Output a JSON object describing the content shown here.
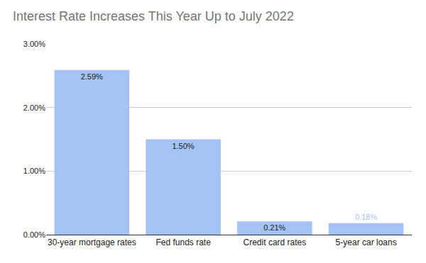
{
  "chart_data": {
    "type": "bar",
    "title": "Interest Rate Increases This Year Up to July 2022",
    "categories": [
      "30-year mortgage rates",
      "Fed funds rate",
      "Credit card rates",
      "5-year car loans"
    ],
    "values": [
      2.59,
      1.5,
      0.21,
      0.18
    ],
    "value_labels": [
      "2.59%",
      "1.50%",
      "0.21%",
      "0.18%"
    ],
    "color": "#a4c2f4",
    "ylim": [
      0,
      3
    ],
    "yticks": [
      {
        "value": 0,
        "label": "0.00%"
      },
      {
        "value": 1,
        "label": "1.00%"
      },
      {
        "value": 2,
        "label": "2.00%"
      },
      {
        "value": 3,
        "label": "3.00%"
      }
    ],
    "grid": true,
    "data_labels": true
  }
}
